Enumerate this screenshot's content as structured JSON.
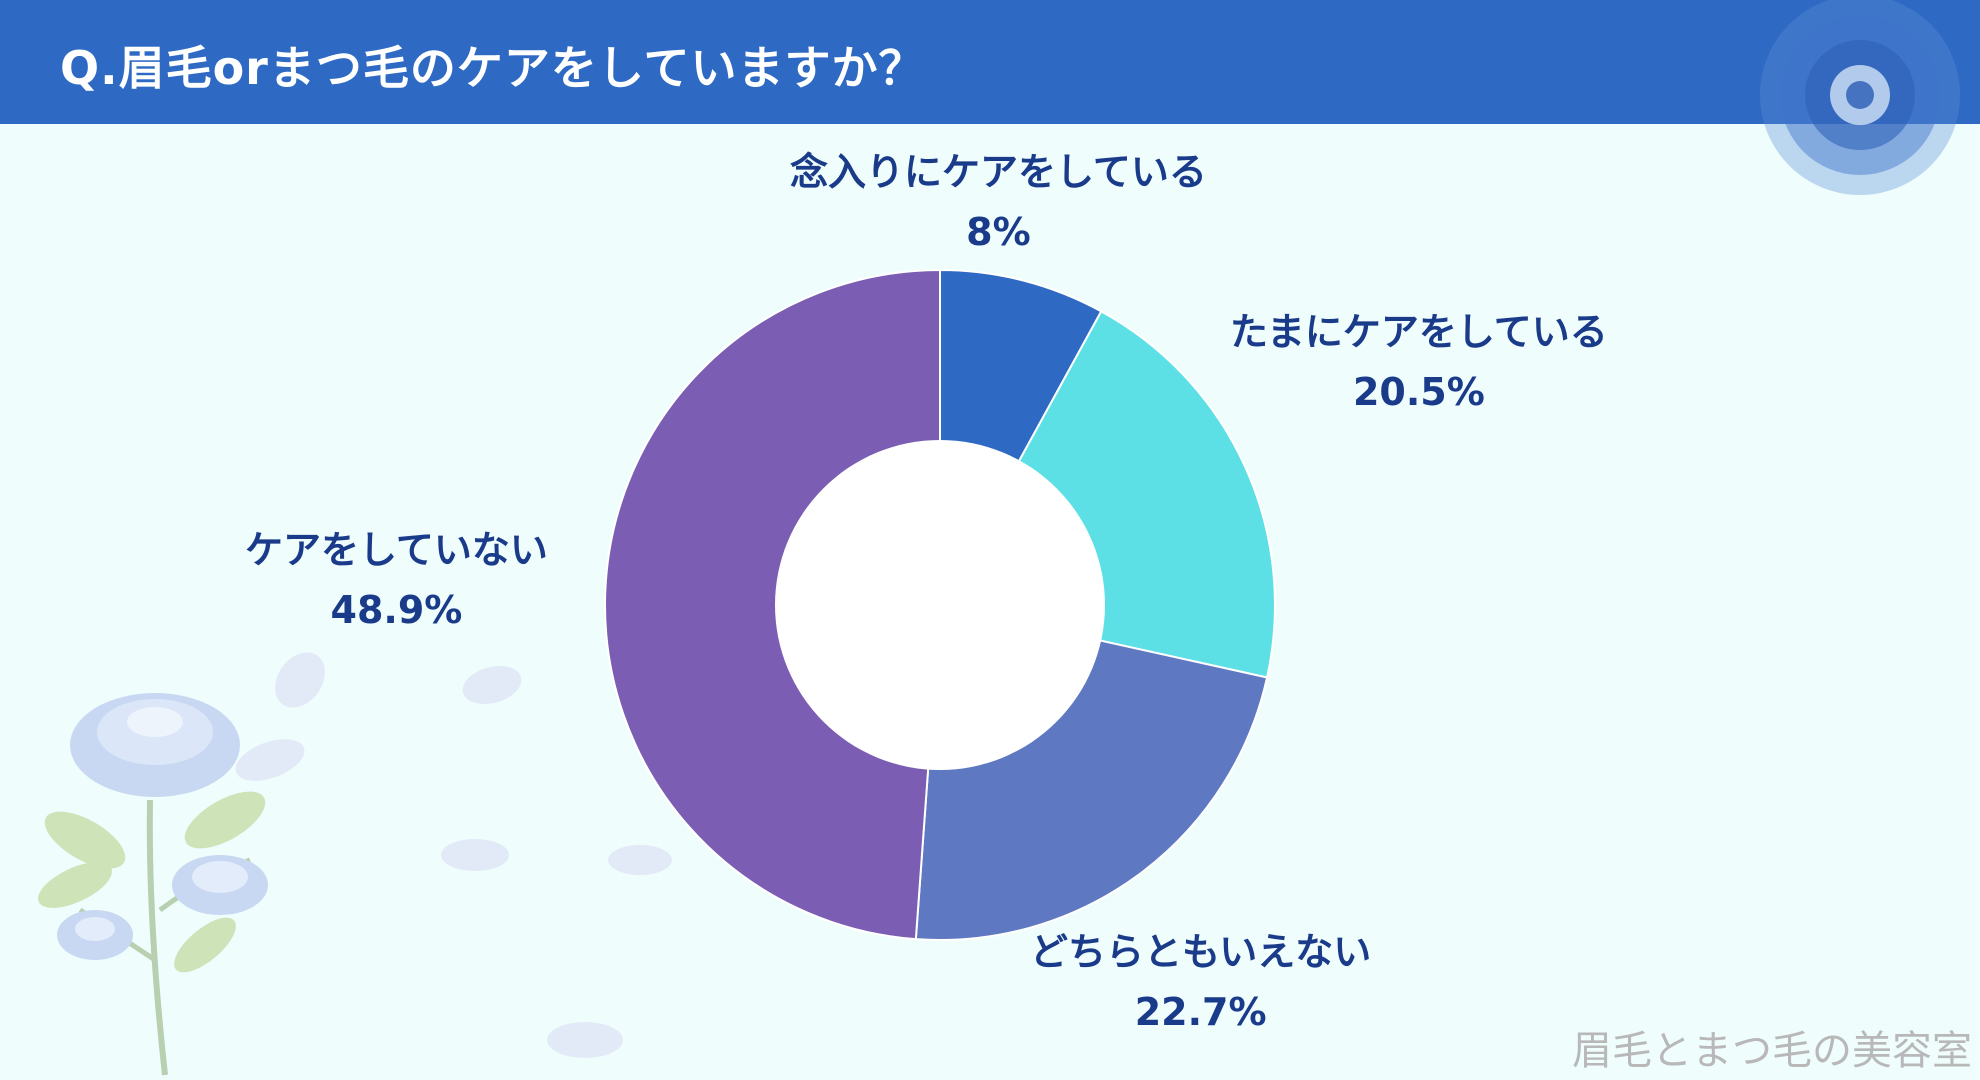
{
  "title": "Q.眉毛orまつ毛のケアをしていますか？",
  "watermark": "眉毛とまつ毛の美容室",
  "chart_data": {
    "type": "pie",
    "donut": true,
    "slices": [
      {
        "label": "念入りにケアをしている",
        "value": 8,
        "value_label": "8%",
        "color": "#2e6ac4"
      },
      {
        "label": "たまにケアをしている",
        "value": 20.5,
        "value_label": "20.5%",
        "color": "#5ce0e6"
      },
      {
        "label": "どちらともいえない",
        "value": 22.7,
        "value_label": "22.7%",
        "color": "#5e78c2"
      },
      {
        "label": "ケアをしていない",
        "value": 48.9,
        "value_label": "48.9%",
        "color": "#7b5eb4"
      }
    ]
  }
}
